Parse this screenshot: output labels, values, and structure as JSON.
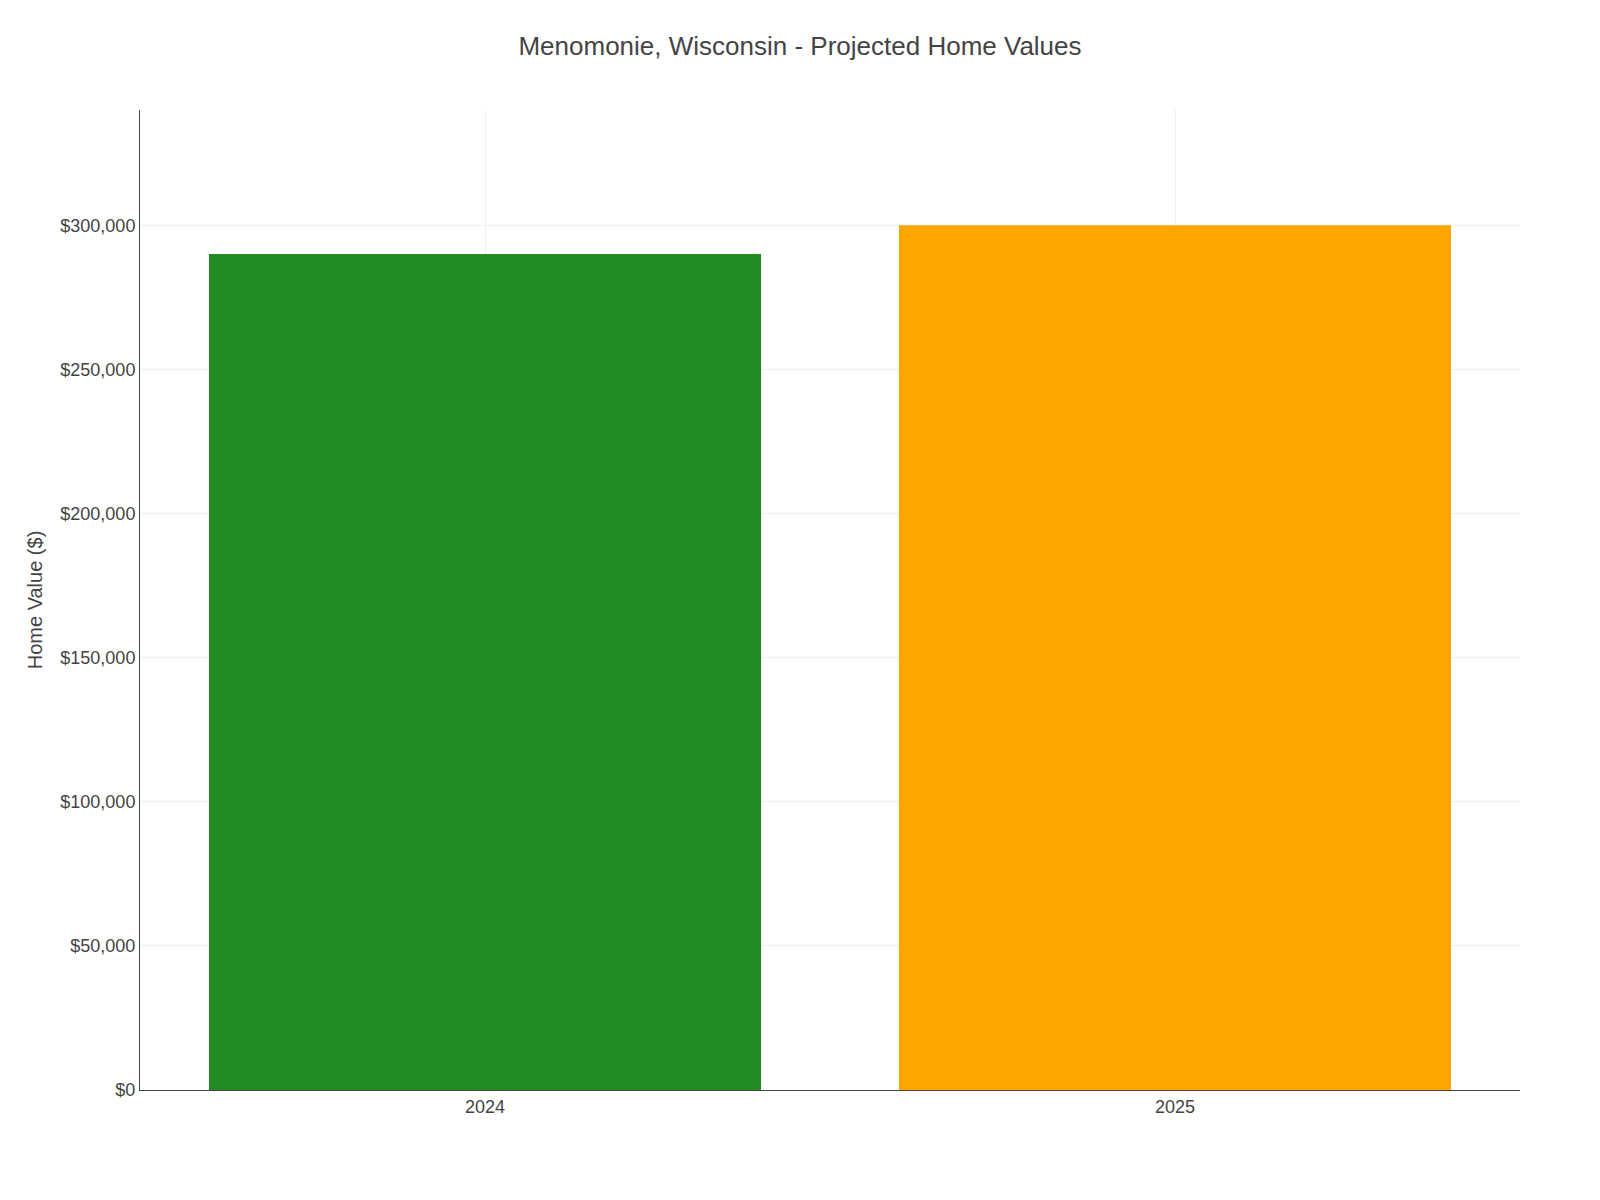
{
  "chart_data": {
    "type": "bar",
    "title": "Menomonie, Wisconsin - Projected Home Values",
    "categories": [
      "2024",
      "2025"
    ],
    "values": [
      290000,
      300000
    ],
    "colors": [
      "#228B22",
      "#FFA500"
    ],
    "ylabel": "Home Value ($)",
    "ylim": [
      0,
      340000
    ],
    "yticks": [
      {
        "value": 0,
        "label": "$0"
      },
      {
        "value": 50000,
        "label": "$50,000"
      },
      {
        "value": 100000,
        "label": "$100,000"
      },
      {
        "value": 150000,
        "label": "$150,000"
      },
      {
        "value": 200000,
        "label": "$200,000"
      },
      {
        "value": 250000,
        "label": "$250,000"
      },
      {
        "value": 300000,
        "label": "$300,000"
      }
    ],
    "grid": true
  }
}
